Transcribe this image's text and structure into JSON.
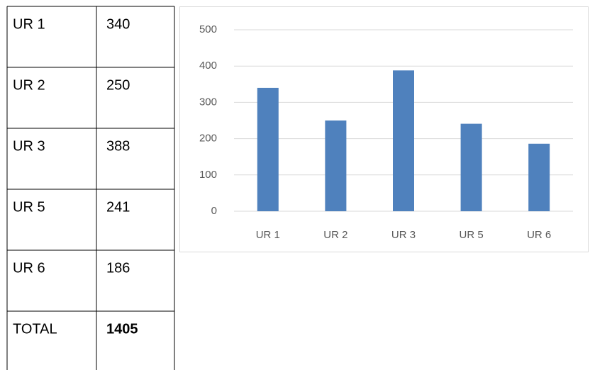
{
  "table": {
    "rows": [
      [
        "UR 1",
        340
      ],
      [
        "UR 2",
        250
      ],
      [
        "UR 3",
        388
      ],
      [
        "UR 5",
        241
      ],
      [
        "UR 6",
        186
      ],
      [
        "TOTAL",
        1405
      ]
    ]
  },
  "chart_data": {
    "type": "bar",
    "categories": [
      "UR 1",
      "UR 2",
      "UR 3",
      "UR 5",
      "UR 6"
    ],
    "values": [
      340,
      250,
      388,
      241,
      186
    ],
    "color": "#4f81bd",
    "ylim": [
      0,
      500
    ],
    "yticks": [
      0,
      100,
      200,
      300,
      400,
      500
    ],
    "grid": true
  }
}
